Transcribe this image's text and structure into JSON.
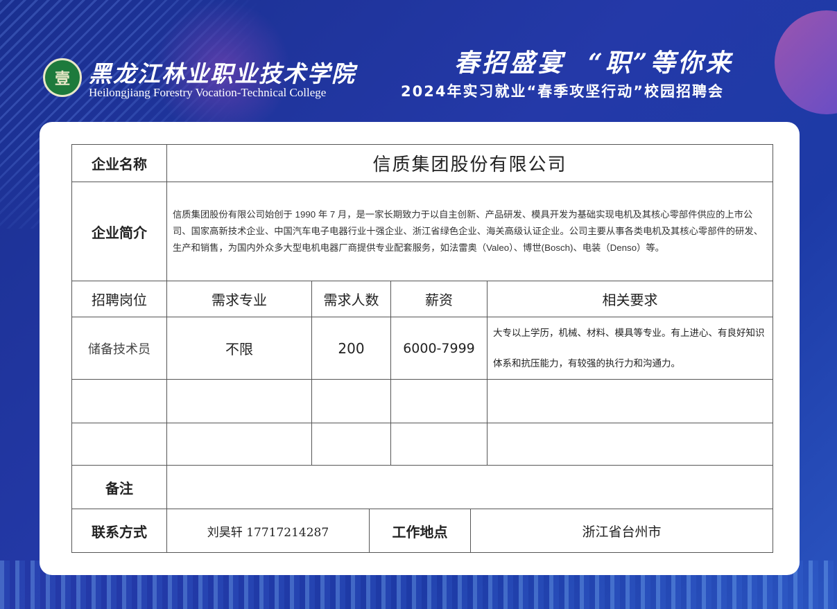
{
  "header": {
    "college_cn": "黑龙江林业职业技术学院",
    "college_en": "Heilongjiang Forestry Vocation-Technical College",
    "slogan": "春招盛宴  “职”等你来",
    "subtitle": "2024年实习就业“春季攻坚行动”校园招聘会"
  },
  "table": {
    "company_label": "企业名称",
    "company_name": "信质集团股份有限公司",
    "intro_label": "企业简介",
    "intro_text": "信质集团股份有限公司始创于 1990 年 7 月，是一家长期致力于以自主创新、产品研发、模具开发为基础实现电机及其核心零部件供应的上市公司、国家高新技术企业、中国汽车电子电器行业十强企业、浙江省绿色企业、海关高级认证企业。公司主要从事各类电机及其核心零部件的研发、生产和销售，为国内外众多大型电机电器厂商提供专业配套服务，如法雷奥（Valeo）、博世(Bosch)、电装（Denso）等。",
    "columns": [
      "招聘岗位",
      "需求专业",
      "需求人数",
      "薪资",
      "相关要求"
    ],
    "rows": [
      [
        "储备技术员",
        "不限",
        "200",
        "6000-7999",
        "大专以上学历，机械、材料、模具等专业。有上进心、有良好知识体系和抗压能力，有较强的执行力和沟通力。"
      ],
      [
        "",
        "",
        "",
        "",
        ""
      ],
      [
        "",
        "",
        "",
        "",
        ""
      ]
    ],
    "notes_label": "备注",
    "notes": "",
    "contact_label": "联系方式",
    "contact": "刘昊轩 17717214287",
    "location_label": "工作地点",
    "location": "浙江省台州市"
  }
}
